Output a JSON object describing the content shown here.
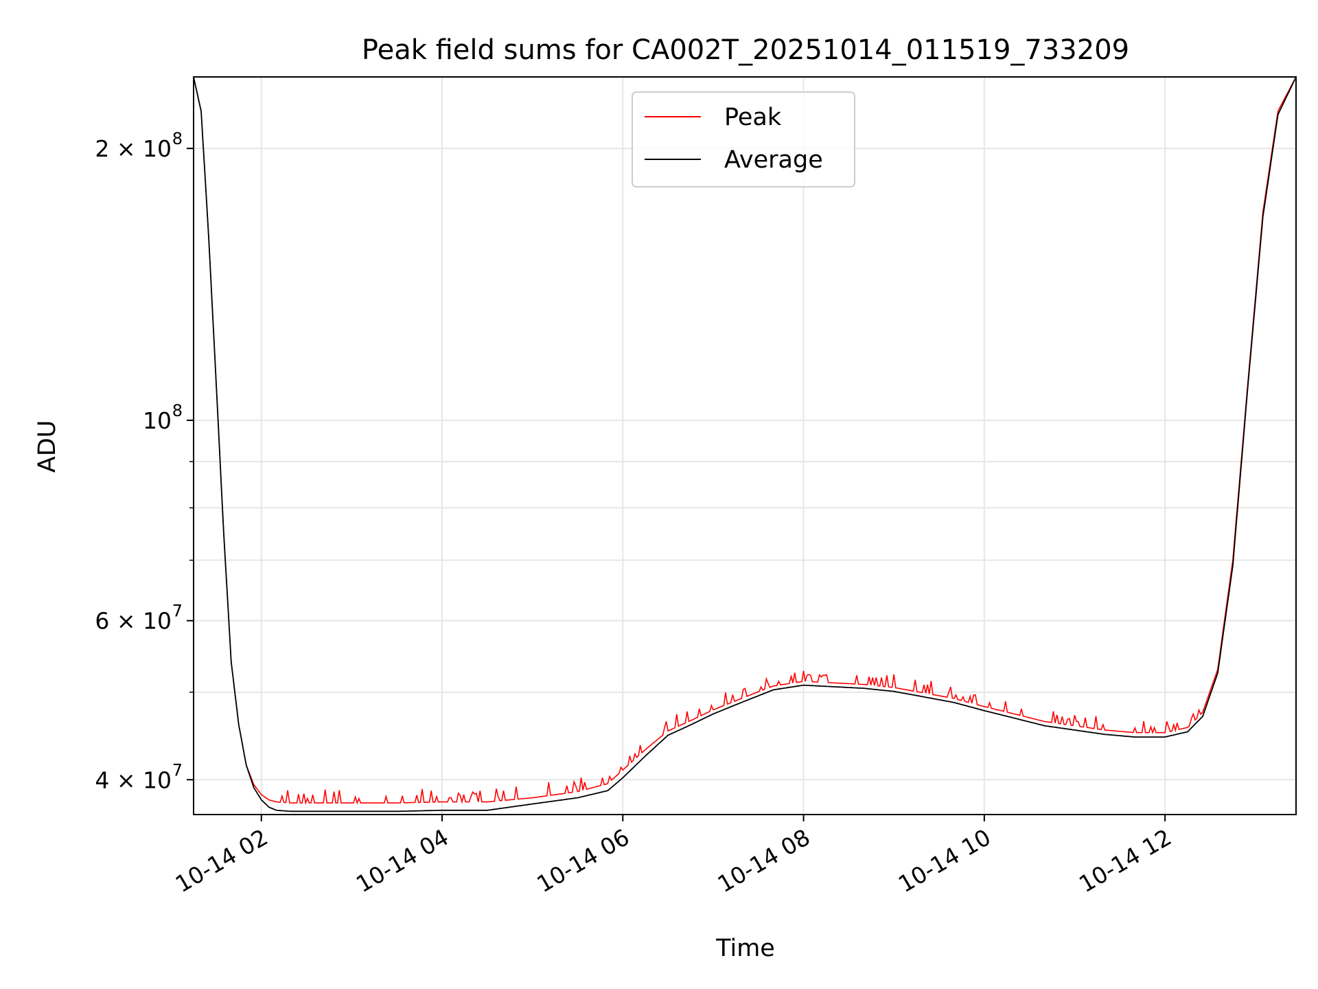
{
  "chart_data": {
    "type": "line",
    "title": "Peak field sums for CA002T_20251014_011519_733209",
    "xlabel": "Time",
    "ylabel": "ADU",
    "yscale": "log",
    "ylim": [
      36600000,
      240000000
    ],
    "xlim": [
      "10-14 01:15",
      "10-14 13:27"
    ],
    "grid": true,
    "legend": {
      "position": "top-center",
      "entries": [
        "Peak",
        "Average"
      ]
    },
    "x_ticks": [
      "10-14 02",
      "10-14 04",
      "10-14 06",
      "10-14 08",
      "10-14 10",
      "10-14 12"
    ],
    "y_ticks": [
      {
        "value": 40000000,
        "label": "4 × 10",
        "exp": "7"
      },
      {
        "value": 60000000,
        "label": "6 × 10",
        "exp": "7"
      },
      {
        "value": 100000000,
        "label": "10",
        "exp": "8"
      },
      {
        "value": 200000000,
        "label": "2 × 10",
        "exp": "8"
      }
    ],
    "series": [
      {
        "name": "Peak",
        "color": "#ff0000",
        "x": [
          "10-14 01:15",
          "10-14 01:20",
          "10-14 01:25",
          "10-14 01:30",
          "10-14 01:35",
          "10-14 01:40",
          "10-14 01:45",
          "10-14 01:50",
          "10-14 01:55",
          "10-14 02:00",
          "10-14 02:05",
          "10-14 02:10",
          "10-14 02:20",
          "10-14 02:40",
          "10-14 03:00",
          "10-14 03:30",
          "10-14 04:00",
          "10-14 04:30",
          "10-14 05:00",
          "10-14 05:30",
          "10-14 05:50",
          "10-14 06:00",
          "10-14 06:15",
          "10-14 06:30",
          "10-14 06:45",
          "10-14 07:00",
          "10-14 07:20",
          "10-14 07:40",
          "10-14 08:00",
          "10-14 08:20",
          "10-14 08:40",
          "10-14 09:00",
          "10-14 09:20",
          "10-14 09:40",
          "10-14 10:00",
          "10-14 10:20",
          "10-14 10:40",
          "10-14 11:00",
          "10-14 11:20",
          "10-14 11:40",
          "10-14 12:00",
          "10-14 12:15",
          "10-14 12:25",
          "10-14 12:35",
          "10-14 12:45",
          "10-14 12:55",
          "10-14 13:05",
          "10-14 13:15",
          "10-14 13:27"
        ],
        "y": [
          240000000,
          220000000,
          160000000,
          110000000,
          75000000,
          54000000,
          46000000,
          41500000,
          39500000,
          38500000,
          38000000,
          37800000,
          37700000,
          37700000,
          37700000,
          37700000,
          37800000,
          37800000,
          38200000,
          38800000,
          39600000,
          41000000,
          43200000,
          45300000,
          46500000,
          47800000,
          49300000,
          50800000,
          51400000,
          51200000,
          51000000,
          50600000,
          49900000,
          49200000,
          48200000,
          47300000,
          46400000,
          45900000,
          45400000,
          45100000,
          45100000,
          45700000,
          47500000,
          53000000,
          70000000,
          110000000,
          170000000,
          220000000,
          240000000
        ]
      },
      {
        "name": "Average",
        "color": "#000000",
        "x": [
          "10-14 01:15",
          "10-14 01:20",
          "10-14 01:25",
          "10-14 01:30",
          "10-14 01:35",
          "10-14 01:40",
          "10-14 01:45",
          "10-14 01:50",
          "10-14 01:55",
          "10-14 02:00",
          "10-14 02:05",
          "10-14 02:10",
          "10-14 02:20",
          "10-14 02:40",
          "10-14 03:00",
          "10-14 03:30",
          "10-14 04:00",
          "10-14 04:30",
          "10-14 05:00",
          "10-14 05:30",
          "10-14 05:50",
          "10-14 06:00",
          "10-14 06:15",
          "10-14 06:30",
          "10-14 06:45",
          "10-14 07:00",
          "10-14 07:20",
          "10-14 07:40",
          "10-14 08:00",
          "10-14 08:20",
          "10-14 08:40",
          "10-14 09:00",
          "10-14 09:20",
          "10-14 09:40",
          "10-14 10:00",
          "10-14 10:20",
          "10-14 10:40",
          "10-14 11:00",
          "10-14 11:20",
          "10-14 11:40",
          "10-14 12:00",
          "10-14 12:15",
          "10-14 12:25",
          "10-14 12:35",
          "10-14 12:45",
          "10-14 12:55",
          "10-14 13:05",
          "10-14 13:15",
          "10-14 13:27"
        ],
        "y": [
          240000000,
          220000000,
          160000000,
          110000000,
          75000000,
          54000000,
          46000000,
          41500000,
          39200000,
          38000000,
          37300000,
          37000000,
          36900000,
          36900000,
          36900000,
          36900000,
          37000000,
          37000000,
          37600000,
          38200000,
          38900000,
          40200000,
          42500000,
          44800000,
          46000000,
          47300000,
          48800000,
          50300000,
          50900000,
          50700000,
          50500000,
          50100000,
          49400000,
          48700000,
          47700000,
          46800000,
          45900000,
          45400000,
          44900000,
          44600000,
          44600000,
          45200000,
          47000000,
          52500000,
          69000000,
          109000000,
          168000000,
          218000000,
          240000000
        ]
      }
    ]
  }
}
